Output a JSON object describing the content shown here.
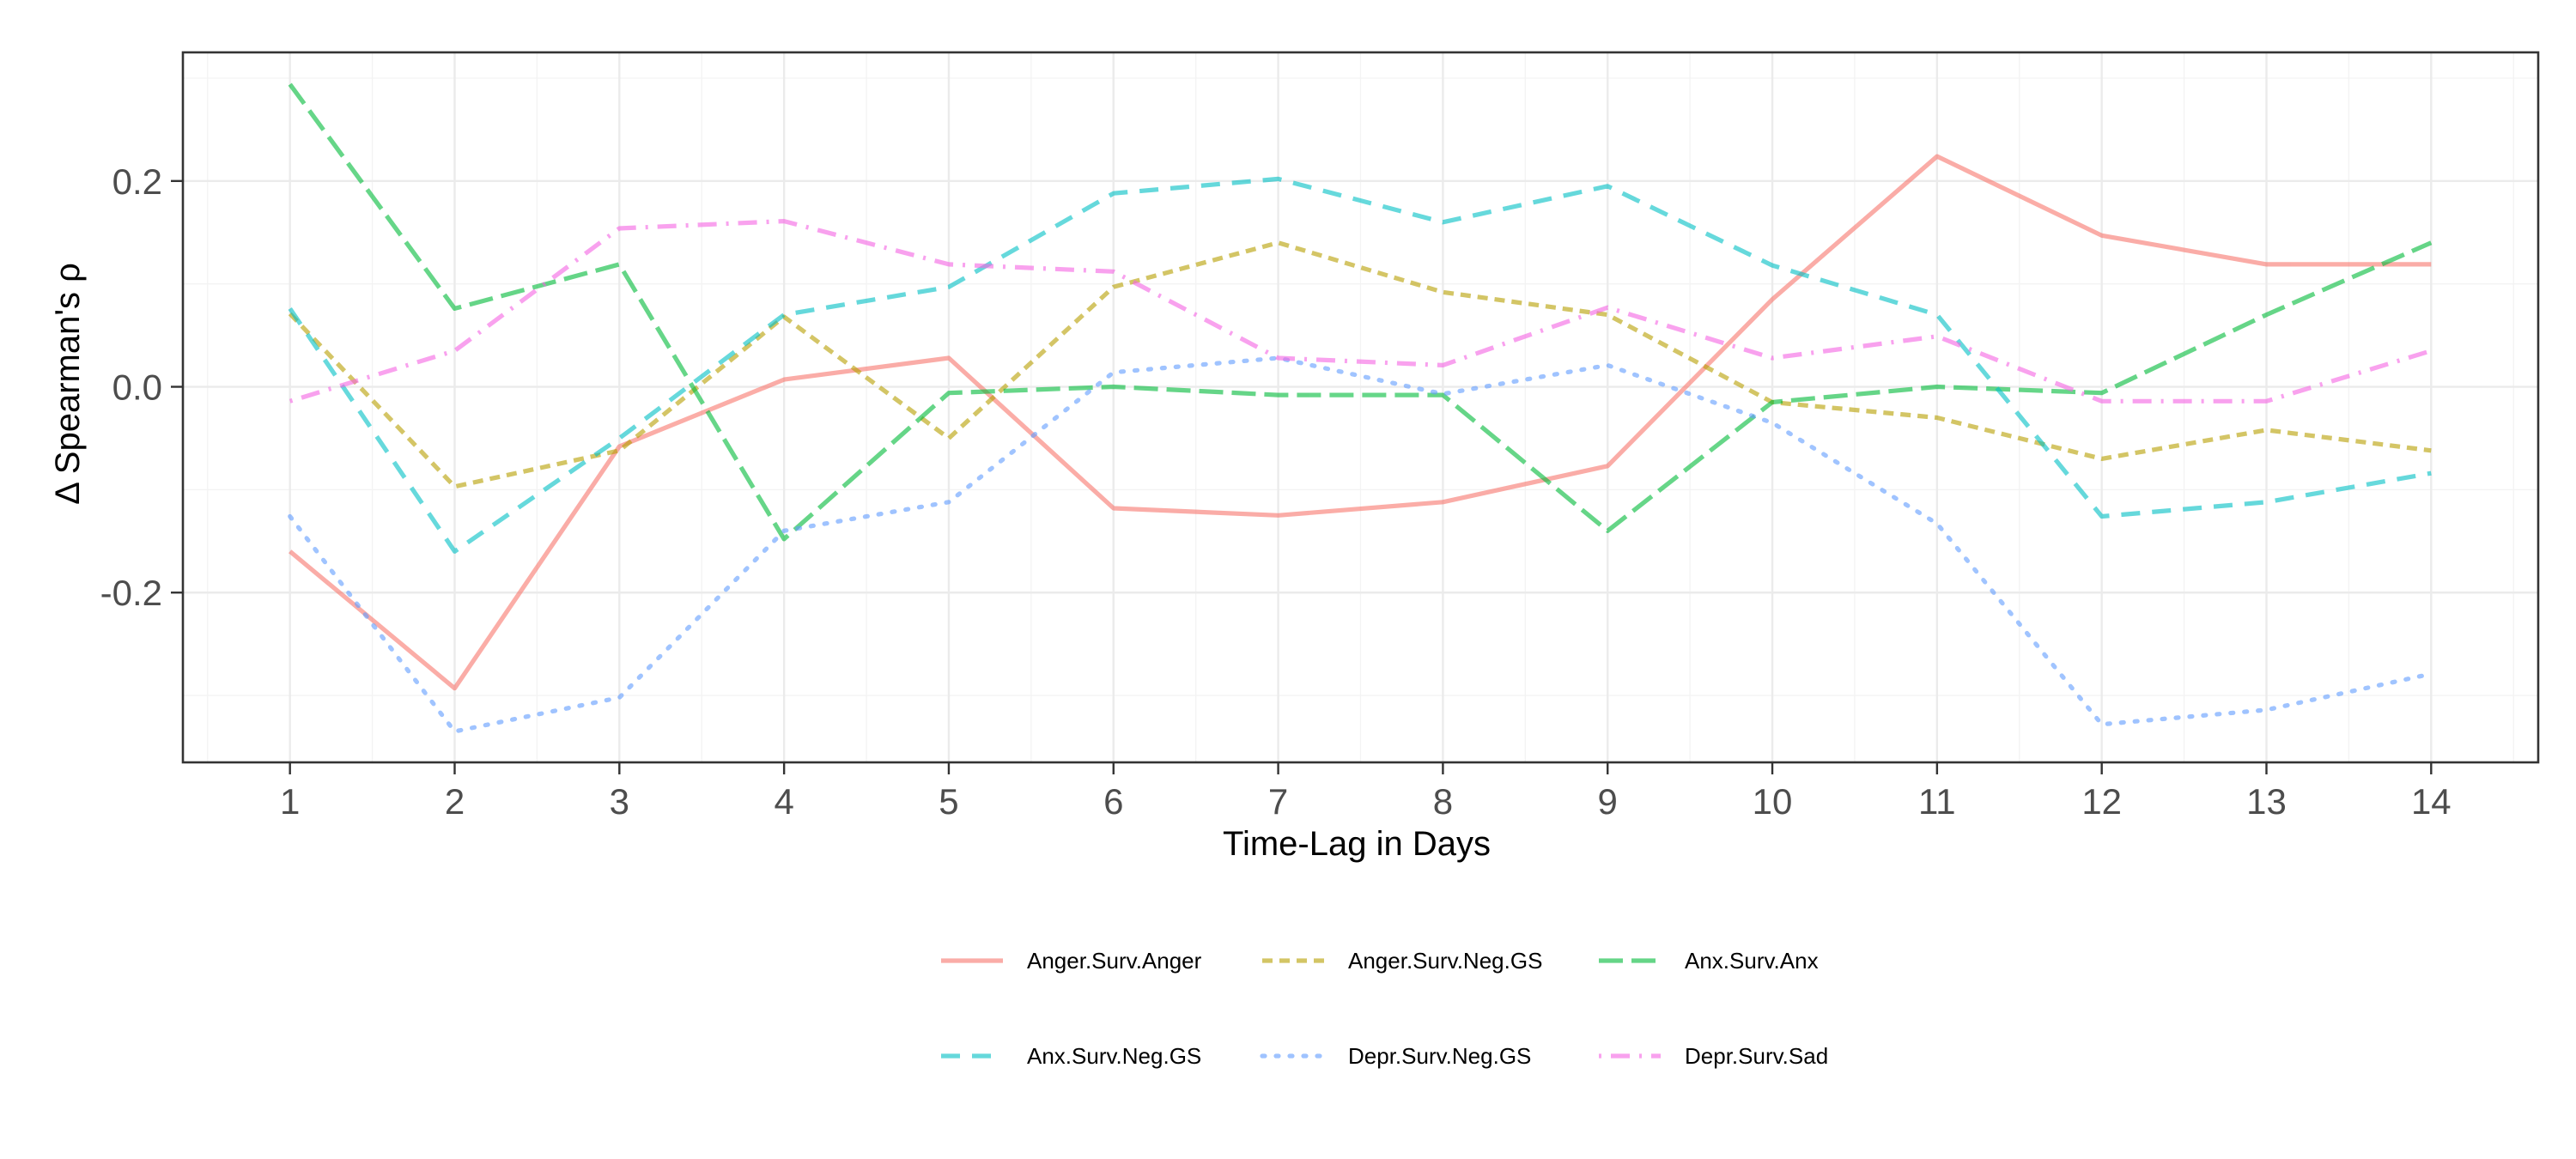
{
  "chart_data": {
    "type": "line",
    "title": "",
    "xlabel": "Time-Lag in Days",
    "ylabel": "Δ Spearman's ρ",
    "x": [
      1,
      2,
      3,
      4,
      5,
      6,
      7,
      8,
      9,
      10,
      11,
      12,
      13,
      14
    ],
    "x_tick_labels": [
      "1",
      "2",
      "3",
      "4",
      "5",
      "6",
      "7",
      "8",
      "9",
      "10",
      "11",
      "12",
      "13",
      "14"
    ],
    "xlim": [
      0.35,
      14.65
    ],
    "ylim": [
      -0.365,
      0.325
    ],
    "y_ticks": [
      -0.2,
      0.0,
      0.2
    ],
    "y_tick_labels": [
      "-0.2",
      "0.0",
      "0.2"
    ],
    "grid": true,
    "legend_position": "bottom",
    "series": [
      {
        "name": "Anger.Surv.Anger",
        "color": "#F8766D",
        "dash": "solid",
        "values": [
          -0.16,
          -0.293,
          -0.058,
          0.007,
          0.028,
          -0.118,
          -0.125,
          -0.112,
          -0.077,
          0.085,
          0.224,
          0.147,
          0.119,
          0.119
        ]
      },
      {
        "name": "Anger.Surv.Neg.GS",
        "color": "#B79F00",
        "dash": "shortdash",
        "values": [
          0.071,
          -0.097,
          -0.062,
          0.068,
          -0.05,
          0.097,
          0.14,
          0.092,
          0.07,
          -0.015,
          -0.03,
          -0.07,
          -0.042,
          -0.062
        ]
      },
      {
        "name": "Anx.Surv.Anx",
        "color": "#00BA38",
        "dash": "longdash",
        "values": [
          0.294,
          0.076,
          0.119,
          -0.148,
          -0.006,
          0.0,
          -0.008,
          -0.008,
          -0.14,
          -0.015,
          0.0,
          -0.006,
          0.07,
          0.14
        ]
      },
      {
        "name": "Anx.Surv.Neg.GS",
        "color": "#00BFC4",
        "dash": "dashed",
        "values": [
          0.076,
          -0.16,
          -0.05,
          0.07,
          0.097,
          0.188,
          0.202,
          0.16,
          0.195,
          0.118,
          0.07,
          -0.126,
          -0.112,
          -0.084
        ]
      },
      {
        "name": "Depr.Surv.Neg.GS",
        "color": "#619CFF",
        "dash": "dotted",
        "values": [
          -0.126,
          -0.335,
          -0.302,
          -0.14,
          -0.112,
          0.014,
          0.028,
          -0.007,
          0.021,
          -0.035,
          -0.133,
          -0.328,
          -0.314,
          -0.279
        ]
      },
      {
        "name": "Depr.Surv.Sad",
        "color": "#F564E3",
        "dash": "dotdash",
        "values": [
          -0.014,
          0.035,
          0.154,
          0.161,
          0.119,
          0.112,
          0.028,
          0.021,
          0.077,
          0.028,
          0.049,
          -0.014,
          -0.014,
          0.035
        ]
      }
    ]
  }
}
